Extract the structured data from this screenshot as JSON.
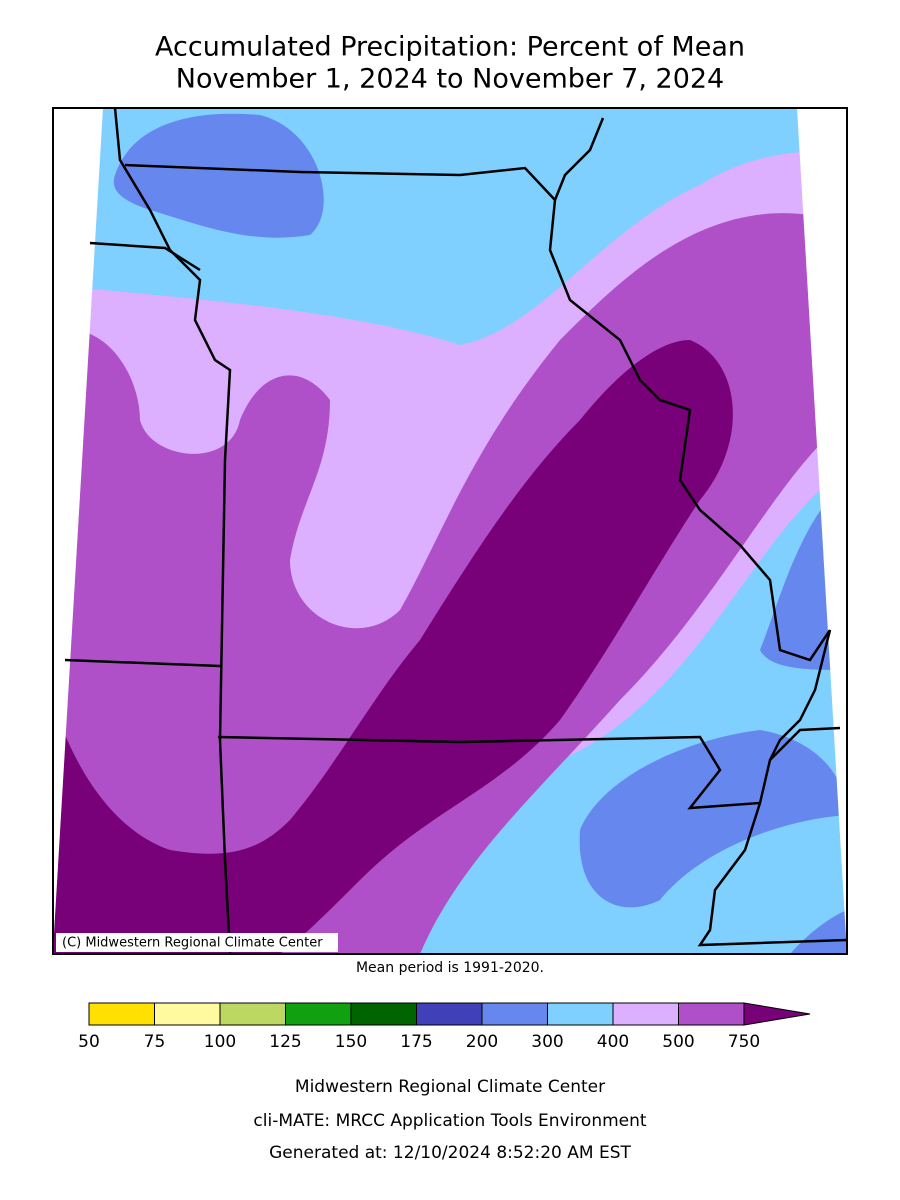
{
  "title": [
    "Accumulated Precipitation: Percent of Mean",
    "November 1, 2024 to November 7, 2024"
  ],
  "copyright": "(C) Midwestern Regional Climate Center",
  "mean_period": "Mean period is 1991-2020.",
  "legend": {
    "ticks": [
      50,
      75,
      100,
      125,
      150,
      175,
      200,
      300,
      400,
      500,
      750
    ],
    "colors": [
      "#ffe000",
      "#fffaa0",
      "#bcd862",
      "#10a010",
      "#006400",
      "#4040b8",
      "#6688ee",
      "#80d0ff",
      "#ddb0ff",
      "#b050c8",
      "#780078"
    ]
  },
  "footer": [
    "Midwestern Regional Climate Center",
    "cli-MATE: MRCC Application Tools Environment",
    "Generated at: 12/10/2024 8:52:20 AM EST"
  ]
}
